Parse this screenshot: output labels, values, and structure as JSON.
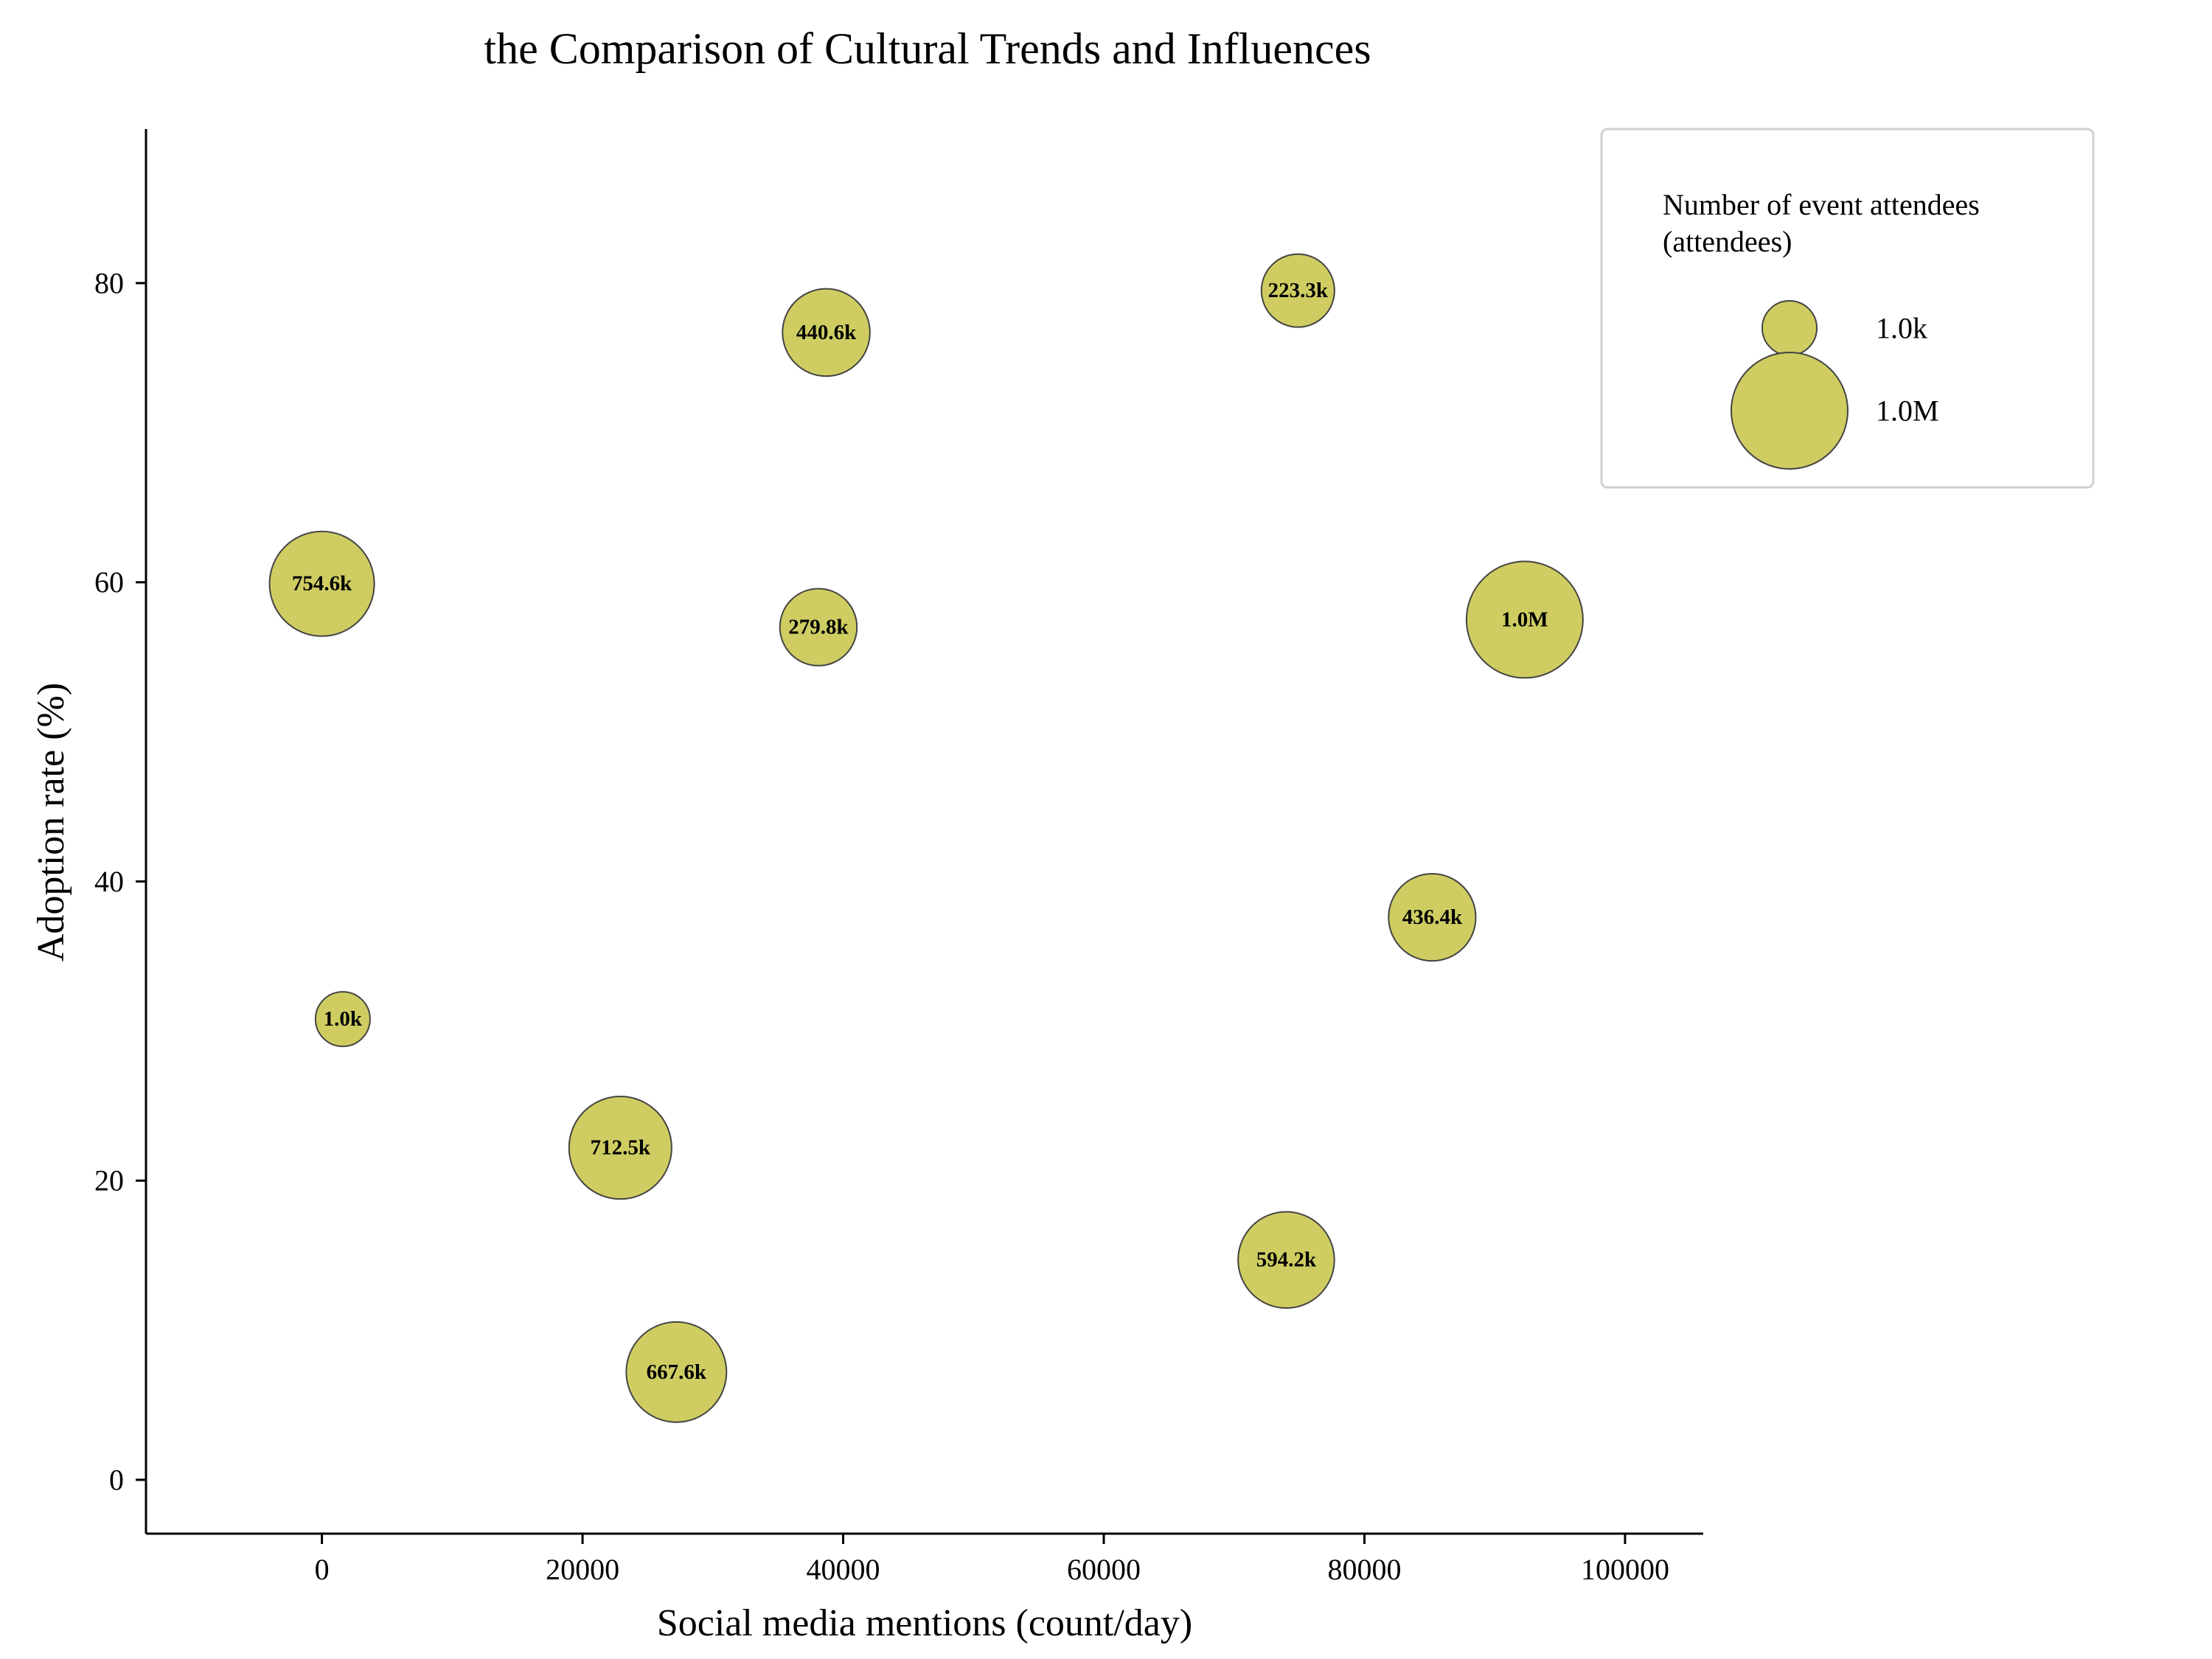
{
  "chart_data": {
    "type": "scatter",
    "title": "the Comparison of Cultural Trends and Influences",
    "xlabel": "Social media mentions (count/day)",
    "ylabel": "Adoption rate (%)",
    "xlim": [
      -13500,
      106000
    ],
    "ylim": [
      -3.6,
      90.3
    ],
    "xticks": [
      "0",
      "20000",
      "40000",
      "60000",
      "80000",
      "100000"
    ],
    "yticks": [
      "0",
      "20",
      "40",
      "60",
      "80"
    ],
    "bubble_color": "#cfcd62",
    "edge_color": "#444444",
    "points": [
      {
        "x": 38700,
        "y": 76.7,
        "size": 440600,
        "label": "440.6k"
      },
      {
        "x": 74900,
        "y": 79.5,
        "size": 223300,
        "label": "223.3k"
      },
      {
        "x": 0,
        "y": 59.9,
        "size": 754600,
        "label": "754.6k"
      },
      {
        "x": 38100,
        "y": 57.0,
        "size": 279800,
        "label": "279.8k"
      },
      {
        "x": 92300,
        "y": 57.5,
        "size": 1000000,
        "label": "1.0M"
      },
      {
        "x": 85200,
        "y": 37.6,
        "size": 436400,
        "label": "436.4k"
      },
      {
        "x": 1600,
        "y": 30.8,
        "size": 1000,
        "label": "1.0k"
      },
      {
        "x": 22900,
        "y": 22.2,
        "size": 712500,
        "label": "712.5k"
      },
      {
        "x": 74000,
        "y": 14.7,
        "size": 594200,
        "label": "594.2k"
      },
      {
        "x": 27200,
        "y": 7.2,
        "size": 667600,
        "label": "667.6k"
      }
    ],
    "legend": {
      "title_line1": "Number of event attendees",
      "title_line2": "(attendees)",
      "placement": "upper-right",
      "entries": [
        {
          "label": "1.0k",
          "size": 1000
        },
        {
          "label": "1.0M",
          "size": 1000000
        }
      ]
    }
  }
}
